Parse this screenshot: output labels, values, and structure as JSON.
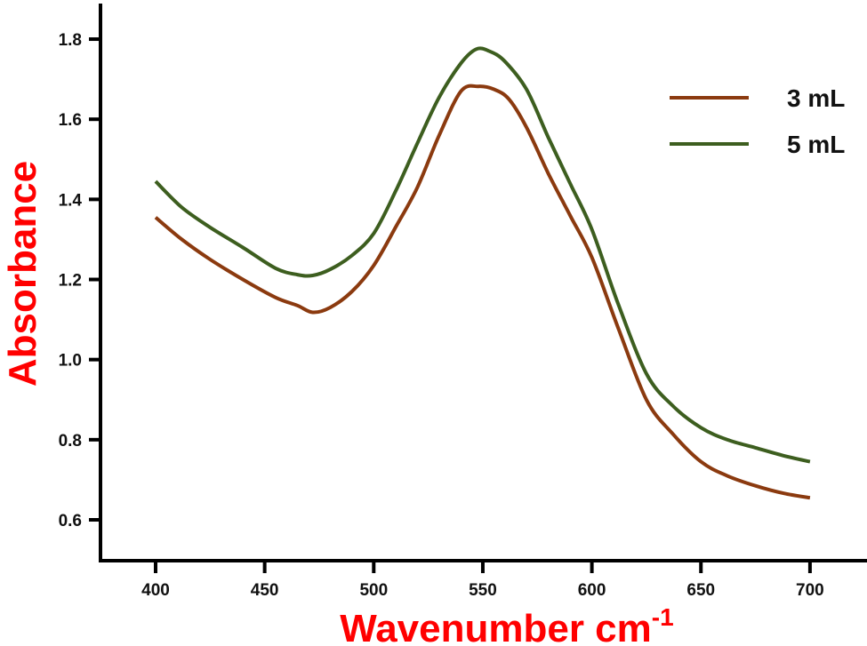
{
  "chart_data": {
    "type": "line",
    "title": "",
    "xlabel": "Wavenumber cm",
    "xlabel_superscript": "-1",
    "ylabel": "Absorbance",
    "xlim": [
      378,
      725
    ],
    "ylim": [
      0.52,
      1.92
    ],
    "xticks": [
      400,
      450,
      500,
      550,
      600,
      650,
      700
    ],
    "yticks": [
      0.6,
      0.8,
      1.0,
      1.2,
      1.4,
      1.6,
      1.8
    ],
    "ytick_labels": [
      "0.6",
      "0.8",
      "1.0",
      "1.2",
      "1.4",
      "1.6",
      "1.8"
    ],
    "grid": false,
    "legend_position": "top-right",
    "series": [
      {
        "name": "3 mL",
        "color": "#8B3A0F",
        "x": [
          400,
          412,
          425,
          440,
          455,
          465,
          472,
          480,
          490,
          500,
          510,
          520,
          530,
          540,
          548,
          555,
          562,
          570,
          580,
          590,
          600,
          612,
          625,
          637,
          650,
          662,
          675,
          688,
          700
        ],
        "y": [
          1.355,
          1.3,
          1.25,
          1.2,
          1.155,
          1.135,
          1.118,
          1.13,
          1.17,
          1.235,
          1.33,
          1.43,
          1.56,
          1.67,
          1.682,
          1.675,
          1.65,
          1.58,
          1.465,
          1.36,
          1.255,
          1.08,
          0.9,
          0.815,
          0.745,
          0.71,
          0.685,
          0.666,
          0.655
        ]
      },
      {
        "name": "5 mL",
        "color": "#3D5E1F",
        "x": [
          400,
          412,
          425,
          440,
          455,
          465,
          472,
          480,
          490,
          500,
          510,
          520,
          530,
          540,
          547,
          553,
          560,
          570,
          580,
          590,
          600,
          612,
          625,
          637,
          650,
          662,
          675,
          688,
          700
        ],
        "y": [
          1.445,
          1.38,
          1.33,
          1.28,
          1.228,
          1.212,
          1.21,
          1.225,
          1.26,
          1.315,
          1.42,
          1.54,
          1.655,
          1.74,
          1.775,
          1.77,
          1.745,
          1.675,
          1.555,
          1.44,
          1.325,
          1.14,
          0.965,
          0.885,
          0.83,
          0.8,
          0.78,
          0.76,
          0.745
        ]
      }
    ]
  },
  "legend": {
    "items": [
      {
        "label": "3 mL",
        "color": "#8B3A0F"
      },
      {
        "label": "5 mL",
        "color": "#3D5E1F"
      }
    ]
  },
  "axes": {
    "x_title": "Wavenumber cm",
    "x_title_sup": "-1",
    "y_title": "Absorbance",
    "title_color": "#ff0000",
    "axis_color": "#000000"
  }
}
